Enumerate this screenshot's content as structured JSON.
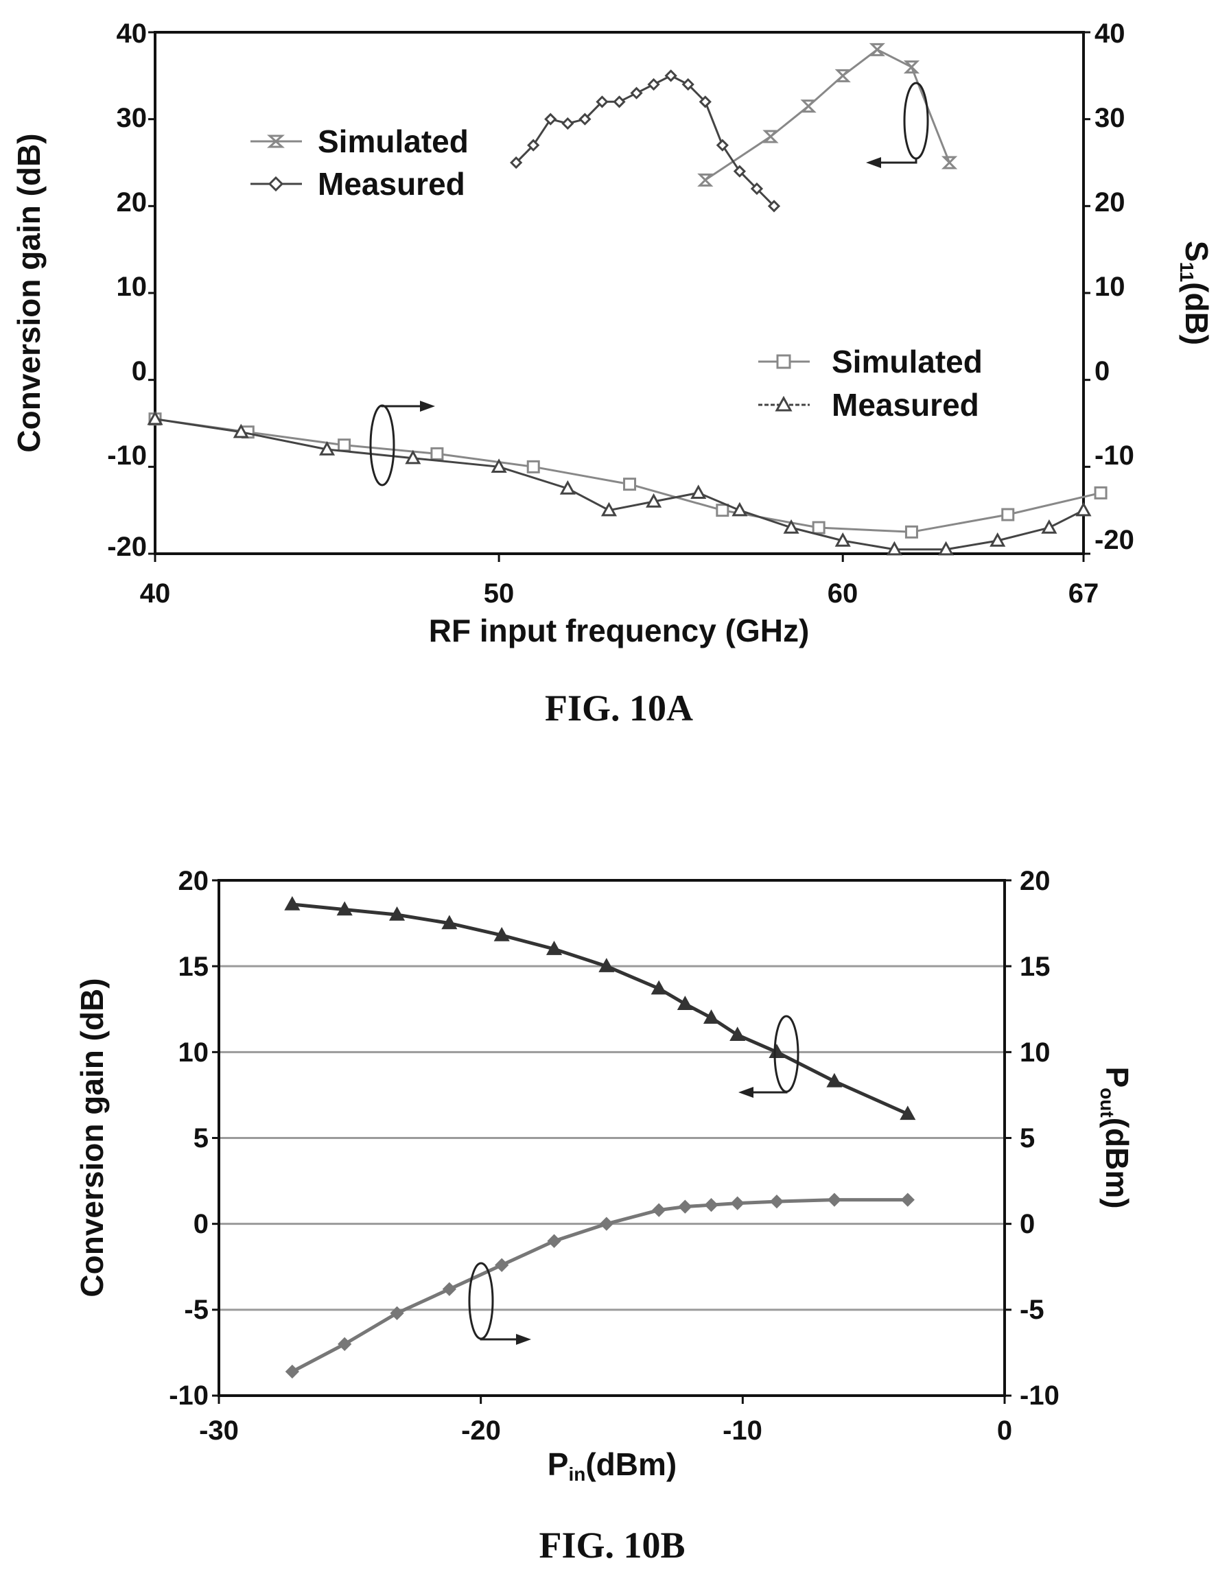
{
  "chart_data": [
    {
      "type": "line",
      "caption": "FIG. 10A",
      "xlabel": "RF input frequency (GHz)",
      "ylabel_left": "Conversion gain (dB)",
      "ylabel_right_main": "S",
      "ylabel_right_sub": "11",
      "ylabel_right_unit": "(dB)",
      "xlim": [
        40,
        67
      ],
      "ylim_left": [
        -20,
        40
      ],
      "ylim_right": [
        -20,
        40
      ],
      "xticks": [
        "40",
        "50",
        "60",
        "67"
      ],
      "xtick_values": [
        40,
        50,
        60,
        67
      ],
      "yticks_left": [
        "40",
        "30",
        "20",
        "10",
        "0",
        "-10",
        "-20"
      ],
      "yticks_right": [
        "40",
        "30",
        "20",
        "10",
        "0",
        "-10",
        "-20"
      ],
      "legends": [
        {
          "items": [
            {
              "label": "Simulated",
              "marker": "hourglass"
            },
            {
              "label": "Measured",
              "marker": "diamond"
            }
          ]
        },
        {
          "items": [
            {
              "label": "Simulated",
              "marker": "square"
            },
            {
              "label": "Measured",
              "marker": "triangle"
            }
          ]
        }
      ],
      "series": [
        {
          "name": "Simulated",
          "axis": "left",
          "marker": "hourglass",
          "color": "#888888",
          "x": [
            56,
            57.9,
            59,
            60,
            61,
            62,
            63.1
          ],
          "y": [
            23,
            28,
            31.5,
            35,
            38,
            36,
            25
          ]
        },
        {
          "name": "Measured",
          "axis": "left",
          "marker": "diamond",
          "color": "#444444",
          "x": [
            50.5,
            51,
            51.5,
            52,
            52.5,
            53,
            53.5,
            54,
            54.5,
            55,
            55.5,
            56,
            56.5,
            57,
            57.5,
            58
          ],
          "y": [
            25,
            27,
            30,
            29.5,
            30,
            32,
            32,
            33,
            34,
            35,
            34,
            32,
            27,
            24,
            22,
            20
          ]
        },
        {
          "name": "Simulated",
          "axis": "right",
          "marker": "square",
          "color": "#888888",
          "x": [
            40,
            42.7,
            45.5,
            48.2,
            51,
            53.8,
            56.5,
            59.3,
            62,
            64.8,
            67.5
          ],
          "y": [
            -4.5,
            -6,
            -7.5,
            -8.5,
            -10,
            -12,
            -15,
            -17,
            -17.5,
            -15.5,
            -13
          ]
        },
        {
          "name": "Measured",
          "axis": "right",
          "marker": "triangle",
          "color": "#444444",
          "x": [
            40,
            42.5,
            45,
            47.5,
            50,
            52,
            53.2,
            54.5,
            55.8,
            57,
            58.5,
            60,
            61.5,
            63,
            64.5,
            66,
            67
          ],
          "y": [
            -4.5,
            -6,
            -8,
            -9,
            -10,
            -12.5,
            -15,
            -14,
            -13,
            -15,
            -17,
            -18.5,
            -19.5,
            -19.5,
            -18.5,
            -17,
            -15
          ]
        }
      ]
    },
    {
      "type": "line",
      "caption": "FIG. 10B",
      "xlabel_main": "P",
      "xlabel_sub": "in",
      "xlabel_unit": "(dBm)",
      "ylabel_left": "Conversion gain (dB)",
      "ylabel_right_main": "P",
      "ylabel_right_sub": "out",
      "ylabel_right_unit": "(dBm)",
      "xlim": [
        -30,
        0
      ],
      "ylim_left": [
        -10,
        20
      ],
      "ylim_right": [
        -10,
        20
      ],
      "xticks": [
        "-30",
        "-20",
        "-10",
        "0"
      ],
      "xtick_values": [
        -30,
        -20,
        -10,
        0
      ],
      "yticks_left": [
        "20",
        "15",
        "10",
        "5",
        "0",
        "-5",
        "-10"
      ],
      "yticks_right": [
        "20",
        "15",
        "10",
        "5",
        "0",
        "-5",
        "-10"
      ],
      "grid": "horizontal",
      "series": [
        {
          "name": "Conversion gain",
          "axis": "left",
          "marker": "triangle",
          "color": "#333333",
          "x": [
            -27.2,
            -25.2,
            -23.2,
            -21.2,
            -19.2,
            -17.2,
            -15.2,
            -13.2,
            -12.2,
            -11.2,
            -10.2,
            -8.7,
            -6.5,
            -3.7
          ],
          "y": [
            18.6,
            18.3,
            18.0,
            17.5,
            16.8,
            16.0,
            15.0,
            13.7,
            12.8,
            12.0,
            11.0,
            10.0,
            8.3,
            6.4
          ]
        },
        {
          "name": "Pout",
          "axis": "right",
          "marker": "diamond",
          "color": "#777777",
          "x": [
            -27.2,
            -25.2,
            -23.2,
            -21.2,
            -19.2,
            -17.2,
            -15.2,
            -13.2,
            -12.2,
            -11.2,
            -10.2,
            -8.7,
            -6.5,
            -3.7
          ],
          "y": [
            -8.6,
            -7,
            -5.2,
            -3.8,
            -2.4,
            -1.0,
            0.0,
            0.8,
            1.0,
            1.1,
            1.2,
            1.3,
            1.4,
            1.4
          ]
        }
      ]
    }
  ]
}
